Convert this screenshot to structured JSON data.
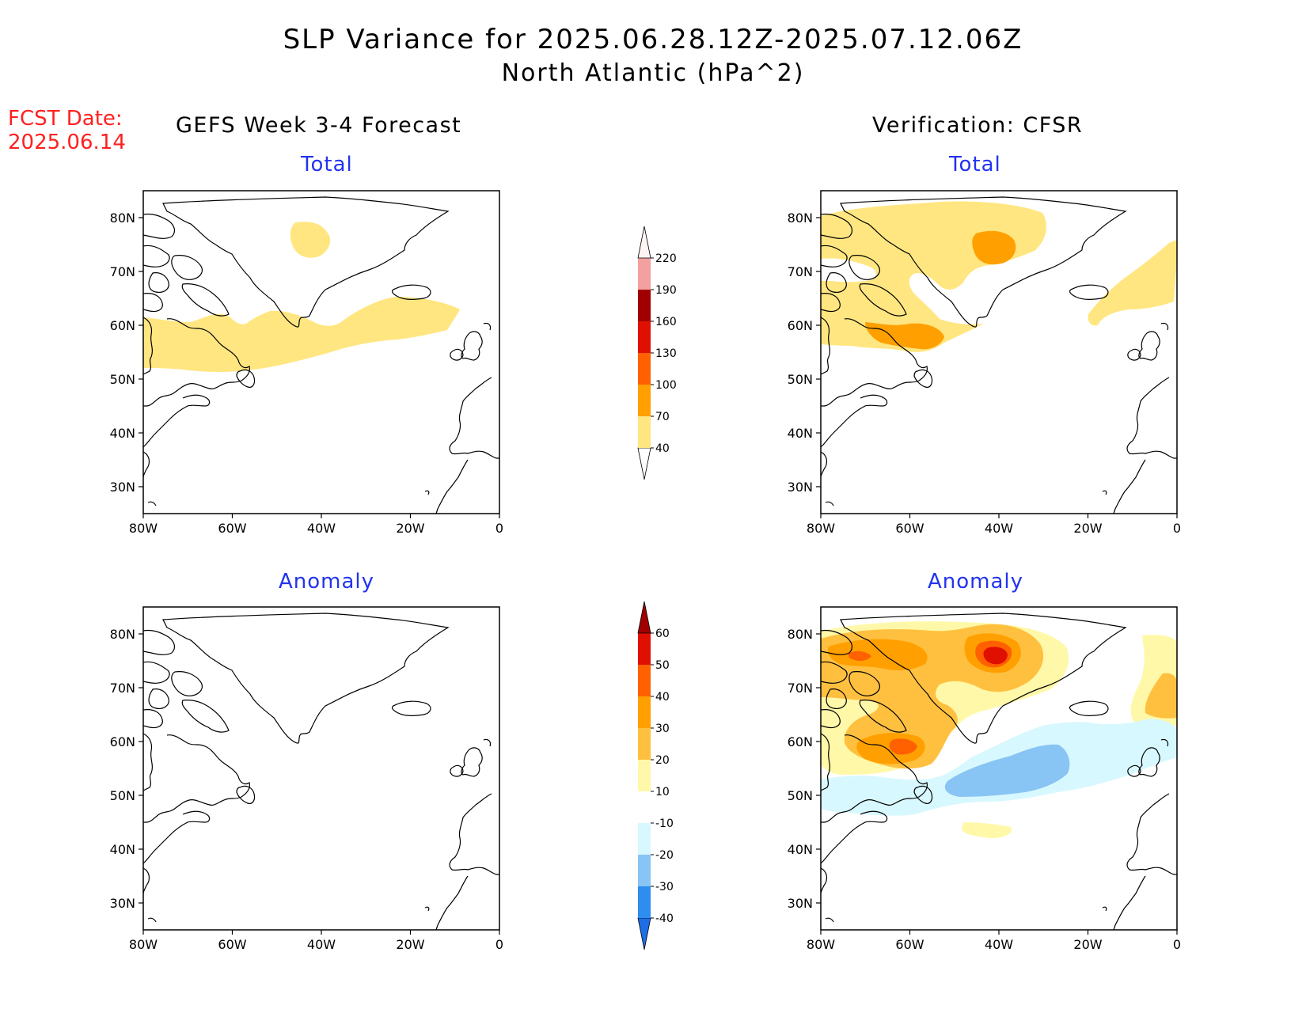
{
  "title_line1": "SLP Variance for 2025.06.28.12Z-2025.07.12.06Z",
  "title_line2": "North Atlantic (hPa^2)",
  "fcst_label": "FCST Date:",
  "fcst_date": "2025.06.14",
  "left_column_title": "GEFS Week 3-4 Forecast",
  "right_column_title": "Verification: CFSR",
  "panel_total": "Total",
  "panel_anomaly": "Anomaly",
  "lat_ticks": [
    "80N",
    "70N",
    "60N",
    "50N",
    "40N",
    "30N"
  ],
  "lon_ticks": [
    "80W",
    "60W",
    "40W",
    "20W",
    "0"
  ],
  "chart_data": {
    "type": "map",
    "region": "North Atlantic",
    "units": "hPa^2",
    "lon_range": [
      -80,
      0
    ],
    "lat_range": [
      25,
      85
    ],
    "total_colorbar": {
      "levels": [
        "40",
        "70",
        "100",
        "130",
        "160",
        "190",
        "220"
      ],
      "colors": [
        "#ffe680",
        "#ffa000",
        "#ff6000",
        "#e01000",
        "#a00000",
        "#f4a0a0",
        "#fde0e0"
      ]
    },
    "anomaly_colorbar": {
      "levels": [
        "-40",
        "-30",
        "-20",
        "-10",
        "10",
        "20",
        "30",
        "40",
        "50",
        "60"
      ],
      "colors": [
        "#1e6ee8",
        "#2e8ef0",
        "#88c4f4",
        "#d8f8ff",
        "#ffffff",
        "#fff8a8",
        "#ffc040",
        "#ffa000",
        "#ff6000",
        "#e01000",
        "#a00000"
      ]
    },
    "panels": [
      {
        "column": "GEFS Week 3-4 Forecast",
        "field": "Total",
        "max_level": "40-70"
      },
      {
        "column": "Verification: CFSR",
        "field": "Total",
        "max_level": "70-100"
      },
      {
        "column": "GEFS Week 3-4 Forecast",
        "field": "Anomaly",
        "max_level": "none"
      },
      {
        "column": "Verification: CFSR",
        "field": "Anomaly",
        "max_level": "50-60",
        "min_level": "-30 to -20"
      }
    ]
  }
}
